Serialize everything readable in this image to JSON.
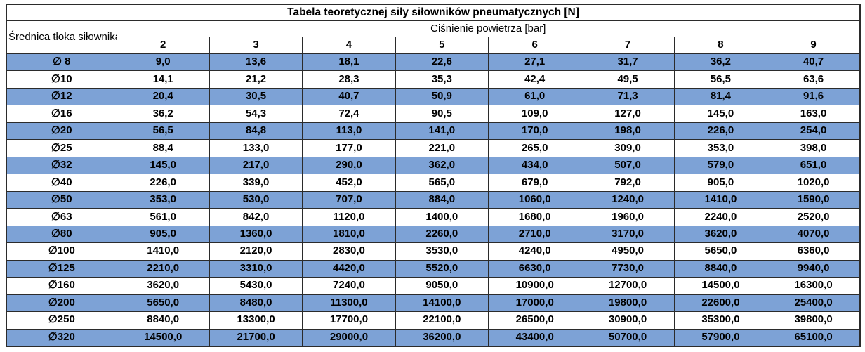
{
  "table": {
    "title": "Tabela teoretycznej siły siłowników pneumatycznych [N]",
    "row_header": "Średnica tłoka siłownika",
    "column_group_header": "Ciśnienie powietrza [bar]",
    "pressure_bar": [
      "2",
      "3",
      "4",
      "5",
      "6",
      "7",
      "8",
      "9"
    ],
    "rows": [
      {
        "diameter": "∅ 8",
        "highlighted": true,
        "forces": [
          "9,0",
          "13,6",
          "18,1",
          "22,6",
          "27,1",
          "31,7",
          "36,2",
          "40,7"
        ]
      },
      {
        "diameter": "∅10",
        "highlighted": false,
        "forces": [
          "14,1",
          "21,2",
          "28,3",
          "35,3",
          "42,4",
          "49,5",
          "56,5",
          "63,6"
        ]
      },
      {
        "diameter": "∅12",
        "highlighted": true,
        "forces": [
          "20,4",
          "30,5",
          "40,7",
          "50,9",
          "61,0",
          "71,3",
          "81,4",
          "91,6"
        ]
      },
      {
        "diameter": "∅16",
        "highlighted": false,
        "forces": [
          "36,2",
          "54,3",
          "72,4",
          "90,5",
          "109,0",
          "127,0",
          "145,0",
          "163,0"
        ]
      },
      {
        "diameter": "∅20",
        "highlighted": true,
        "forces": [
          "56,5",
          "84,8",
          "113,0",
          "141,0",
          "170,0",
          "198,0",
          "226,0",
          "254,0"
        ]
      },
      {
        "diameter": "∅25",
        "highlighted": false,
        "forces": [
          "88,4",
          "133,0",
          "177,0",
          "221,0",
          "265,0",
          "309,0",
          "353,0",
          "398,0"
        ]
      },
      {
        "diameter": "∅32",
        "highlighted": true,
        "forces": [
          "145,0",
          "217,0",
          "290,0",
          "362,0",
          "434,0",
          "507,0",
          "579,0",
          "651,0"
        ]
      },
      {
        "diameter": "∅40",
        "highlighted": false,
        "forces": [
          "226,0",
          "339,0",
          "452,0",
          "565,0",
          "679,0",
          "792,0",
          "905,0",
          "1020,0"
        ]
      },
      {
        "diameter": "∅50",
        "highlighted": true,
        "forces": [
          "353,0",
          "530,0",
          "707,0",
          "884,0",
          "1060,0",
          "1240,0",
          "1410,0",
          "1590,0"
        ]
      },
      {
        "diameter": "∅63",
        "highlighted": false,
        "forces": [
          "561,0",
          "842,0",
          "1120,0",
          "1400,0",
          "1680,0",
          "1960,0",
          "2240,0",
          "2520,0"
        ]
      },
      {
        "diameter": "∅80",
        "highlighted": true,
        "forces": [
          "905,0",
          "1360,0",
          "1810,0",
          "2260,0",
          "2710,0",
          "3170,0",
          "3620,0",
          "4070,0"
        ]
      },
      {
        "diameter": "∅100",
        "highlighted": false,
        "forces": [
          "1410,0",
          "2120,0",
          "2830,0",
          "3530,0",
          "4240,0",
          "4950,0",
          "5650,0",
          "6360,0"
        ]
      },
      {
        "diameter": "∅125",
        "highlighted": true,
        "forces": [
          "2210,0",
          "3310,0",
          "4420,0",
          "5520,0",
          "6630,0",
          "7730,0",
          "8840,0",
          "9940,0"
        ]
      },
      {
        "diameter": "∅160",
        "highlighted": false,
        "forces": [
          "3620,0",
          "5430,0",
          "7240,0",
          "9050,0",
          "10900,0",
          "12700,0",
          "14500,0",
          "16300,0"
        ]
      },
      {
        "diameter": "∅200",
        "highlighted": true,
        "forces": [
          "5650,0",
          "8480,0",
          "11300,0",
          "14100,0",
          "17000,0",
          "19800,0",
          "22600,0",
          "25400,0"
        ]
      },
      {
        "diameter": "∅250",
        "highlighted": false,
        "forces": [
          "8840,0",
          "13300,0",
          "17700,0",
          "22100,0",
          "26500,0",
          "30900,0",
          "35300,0",
          "39800,0"
        ]
      },
      {
        "diameter": "∅320",
        "highlighted": true,
        "forces": [
          "14500,0",
          "21700,0",
          "29000,0",
          "36200,0",
          "43400,0",
          "50700,0",
          "57900,0",
          "65100,0"
        ]
      }
    ]
  },
  "colors": {
    "highlight_row": "#7DA2D6",
    "plain_row": "#FFFFFF",
    "border": "#2B2B2B",
    "text": "#000000"
  }
}
